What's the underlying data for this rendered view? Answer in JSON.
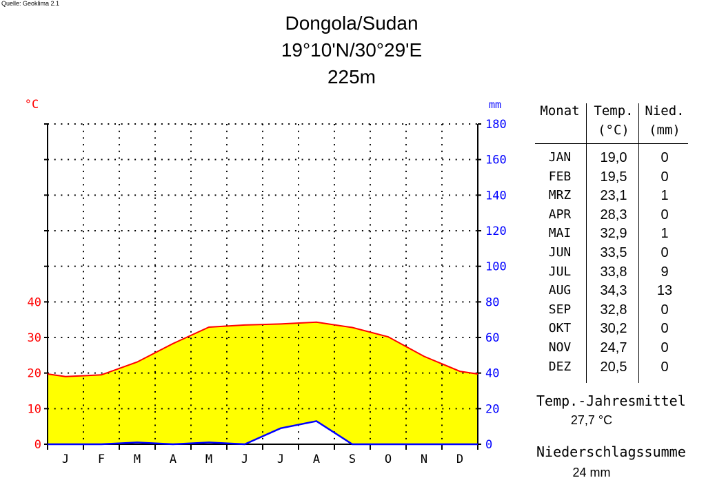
{
  "source": "Quelle: Geoklima 2.1",
  "title": {
    "station": "Dongola/Sudan",
    "coords": "19°10'N/30°29'E",
    "altitude": "225m"
  },
  "table": {
    "header_month": "Monat",
    "header_temp": "Temp.",
    "header_temp_unit": "(°C)",
    "header_prec": "Nied.",
    "header_prec_unit": "(mm)",
    "rows": [
      {
        "month": "JAN",
        "temp": "19,0",
        "prec": "0"
      },
      {
        "month": "FEB",
        "temp": "19,5",
        "prec": "0"
      },
      {
        "month": "MRZ",
        "temp": "23,1",
        "prec": "1"
      },
      {
        "month": "APR",
        "temp": "28,3",
        "prec": "0"
      },
      {
        "month": "MAI",
        "temp": "32,9",
        "prec": "1"
      },
      {
        "month": "JUN",
        "temp": "33,5",
        "prec": "0"
      },
      {
        "month": "JUL",
        "temp": "33,8",
        "prec": "9"
      },
      {
        "month": "AUG",
        "temp": "34,3",
        "prec": "13"
      },
      {
        "month": "SEP",
        "temp": "32,8",
        "prec": "0"
      },
      {
        "month": "OKT",
        "temp": "30,2",
        "prec": "0"
      },
      {
        "month": "NOV",
        "temp": "24,7",
        "prec": "0"
      },
      {
        "month": "DEZ",
        "temp": "20,5",
        "prec": "0"
      }
    ]
  },
  "summary": {
    "temp_label": "Temp.-Jahresmittel",
    "temp_value": "27,7 °C",
    "prec_label": "Niederschlagssumme",
    "prec_value": "24 mm"
  },
  "chart_data": {
    "type": "line",
    "categories": [
      "J",
      "F",
      "M",
      "A",
      "M",
      "J",
      "J",
      "A",
      "S",
      "O",
      "N",
      "D"
    ],
    "series": [
      {
        "axis": "left",
        "unit": "°C",
        "color": "#ff0000",
        "values": [
          19.0,
          19.5,
          23.1,
          28.3,
          32.9,
          33.5,
          33.8,
          34.3,
          32.8,
          30.2,
          24.7,
          20.5
        ]
      },
      {
        "axis": "right",
        "unit": "mm",
        "color": "#0000ff",
        "values": [
          0,
          0,
          1,
          0,
          1,
          0,
          9,
          13,
          0,
          0,
          0,
          0
        ]
      }
    ],
    "left_axis": {
      "label": "°C",
      "ticks": [
        0,
        10,
        20,
        30,
        40
      ],
      "color": "#ff0000"
    },
    "right_axis": {
      "label": "mm",
      "ticks": [
        0,
        20,
        40,
        60,
        80,
        100,
        120,
        140,
        160,
        180
      ],
      "color": "#0000ff"
    },
    "ylim_left": [
      0,
      90
    ],
    "ylim_right": [
      0,
      180
    ],
    "arid_fill": "#ffff00",
    "humid_fill": "#ffffff",
    "grid": "dotted"
  }
}
